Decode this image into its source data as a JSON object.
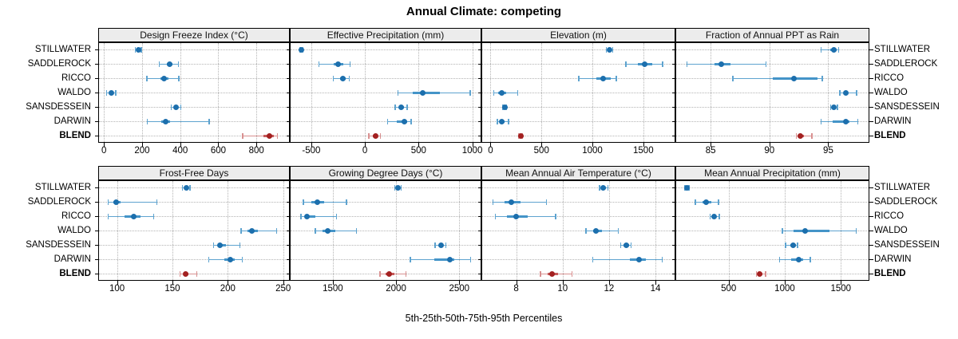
{
  "title": "Annual Climate: competing",
  "caption": "5th-25th-50th-75th-95th Percentiles",
  "stations": [
    "STILLWATER",
    "SADDLEROCK",
    "RICCO",
    "WALDO",
    "SANSDESSEIN",
    "DARWIN",
    "BLEND"
  ],
  "highlight_station": "BLEND",
  "colors": {
    "station_dot": "#1c6fad",
    "station_band": "#4494c8",
    "station_line": "#5ea3cf",
    "blend_dot": "#a32020",
    "blend_band": "#c45a5a",
    "blend_line": "#d89090",
    "grid": "#b4b4b4",
    "strip_bg": "#ececec",
    "border": "#000000"
  },
  "chart_data": {
    "type": "scatter",
    "variant": "trellis-dotplot-with-percentile-whiskers",
    "percentile_labels": [
      "5th",
      "25th",
      "50th",
      "75th",
      "95th"
    ],
    "categories": [
      "STILLWATER",
      "SADDLEROCK",
      "RICCO",
      "WALDO",
      "SANSDESSEIN",
      "DARWIN",
      "BLEND"
    ],
    "legend_position": "none",
    "grid": "dotted",
    "panels": [
      {
        "title": "Design Freeze Index (°C)",
        "xticks": [
          0,
          200,
          400,
          600,
          800
        ],
        "xlim": [
          -30,
          975
        ],
        "rows": [
          [
            165,
            175,
            180,
            187,
            197
          ],
          [
            290,
            330,
            345,
            360,
            390
          ],
          [
            225,
            295,
            315,
            340,
            393
          ],
          [
            15,
            30,
            38,
            47,
            62
          ],
          [
            354,
            370,
            380,
            390,
            403
          ],
          [
            227,
            300,
            322,
            348,
            553
          ],
          [
            728,
            838,
            870,
            890,
            911
          ]
        ]
      },
      {
        "title": "Effective Precipitation (mm)",
        "xticks": [
          -500,
          0,
          500,
          1000
        ],
        "xlim": [
          -700,
          1085
        ],
        "rows": [
          [
            -605,
            -597,
            -592,
            -585,
            -578
          ],
          [
            -428,
            -290,
            -250,
            -205,
            -140
          ],
          [
            -295,
            -235,
            -206,
            -180,
            -146
          ],
          [
            307,
            448,
            535,
            700,
            980
          ],
          [
            282,
            320,
            340,
            360,
            394
          ],
          [
            210,
            300,
            365,
            390,
            430
          ],
          [
            35,
            75,
            97,
            120,
            146
          ]
        ]
      },
      {
        "title": "Elevation (m)",
        "xticks": [
          0,
          500,
          1000,
          1500
        ],
        "xlim": [
          -90,
          1815
        ],
        "rows": [
          [
            1135,
            1155,
            1168,
            1181,
            1200
          ],
          [
            1330,
            1450,
            1513,
            1590,
            1690
          ],
          [
            868,
            1040,
            1105,
            1180,
            1235
          ],
          [
            32,
            75,
            107,
            150,
            265
          ],
          [
            120,
            132,
            139,
            147,
            158
          ],
          [
            66,
            95,
            113,
            135,
            176
          ],
          [
            280,
            290,
            298,
            306,
            315
          ]
        ]
      },
      {
        "title": "Fraction of Annual PPT as Rain",
        "xticks": [
          85,
          90,
          95
        ],
        "xlim": [
          82,
          98.5
        ],
        "rows": [
          [
            94.4,
            95.2,
            95.5,
            95.7,
            95.9
          ],
          [
            83.0,
            85.3,
            85.9,
            86.7,
            89.7
          ],
          [
            86.9,
            90.3,
            92.1,
            94.1,
            94.5
          ],
          [
            96.0,
            96.3,
            96.5,
            96.7,
            97.4
          ],
          [
            95.2,
            95.4,
            95.5,
            95.6,
            95.8
          ],
          [
            94.4,
            95.4,
            96.5,
            96.8,
            97.5
          ],
          [
            92.3,
            92.5,
            92.6,
            92.9,
            93.6
          ]
        ]
      },
      {
        "title": "Frost-Free Days",
        "xticks": [
          100,
          150,
          200,
          250
        ],
        "xlim": [
          83,
          256
        ],
        "rows": [
          [
            159,
            161,
            162.5,
            164,
            166
          ],
          [
            92,
            97,
            99.5,
            103,
            136
          ],
          [
            92,
            107,
            115,
            121,
            133
          ],
          [
            212,
            218,
            222,
            227,
            244
          ],
          [
            187,
            191,
            193,
            198,
            211
          ],
          [
            183,
            197,
            202,
            206,
            213
          ],
          [
            157,
            160,
            162,
            164.5,
            172
          ]
        ]
      },
      {
        "title": "Growing Degree Days (°C)",
        "xticks": [
          1500,
          2000,
          2500
        ],
        "xlim": [
          1160,
          2675
        ],
        "rows": [
          [
            1990,
            2005,
            2015,
            2025,
            2040
          ],
          [
            1266,
            1330,
            1375,
            1430,
            1608
          ],
          [
            1249,
            1280,
            1297,
            1360,
            1530
          ],
          [
            1361,
            1420,
            1460,
            1520,
            1688
          ],
          [
            2310,
            2340,
            2356,
            2375,
            2394
          ],
          [
            2114,
            2300,
            2426,
            2460,
            2590
          ],
          [
            1873,
            1915,
            1947,
            1990,
            2078
          ]
        ]
      },
      {
        "title": "Mean Annual Air Temperature (°C)",
        "xticks": [
          8,
          10,
          12,
          14
        ],
        "xlim": [
          6.5,
          14.86
        ],
        "rows": [
          [
            11.6,
            11.7,
            11.76,
            11.85,
            11.95
          ],
          [
            7.0,
            7.5,
            7.8,
            8.2,
            9.3
          ],
          [
            7.1,
            7.6,
            8.0,
            8.5,
            9.7
          ],
          [
            11.0,
            11.3,
            11.45,
            11.7,
            12.4
          ],
          [
            12.5,
            12.62,
            12.73,
            12.85,
            12.95
          ],
          [
            11.3,
            12.9,
            13.3,
            13.6,
            14.3
          ],
          [
            9.05,
            9.35,
            9.55,
            9.8,
            10.4
          ]
        ]
      },
      {
        "title": "Mean Annual Precipitation (mm)",
        "xticks": [
          500,
          1000,
          1500
        ],
        "xlim": [
          26,
          1754
        ],
        "rows": [
          [
            110,
            120,
            127,
            135,
            148
          ],
          [
            203,
            270,
            303,
            345,
            410
          ],
          [
            334,
            360,
            374,
            390,
            417
          ],
          [
            980,
            1080,
            1180,
            1400,
            1635
          ],
          [
            1007,
            1050,
            1078,
            1098,
            1114
          ],
          [
            955,
            1060,
            1128,
            1165,
            1228
          ],
          [
            746,
            765,
            777,
            800,
            831
          ]
        ]
      }
    ]
  }
}
